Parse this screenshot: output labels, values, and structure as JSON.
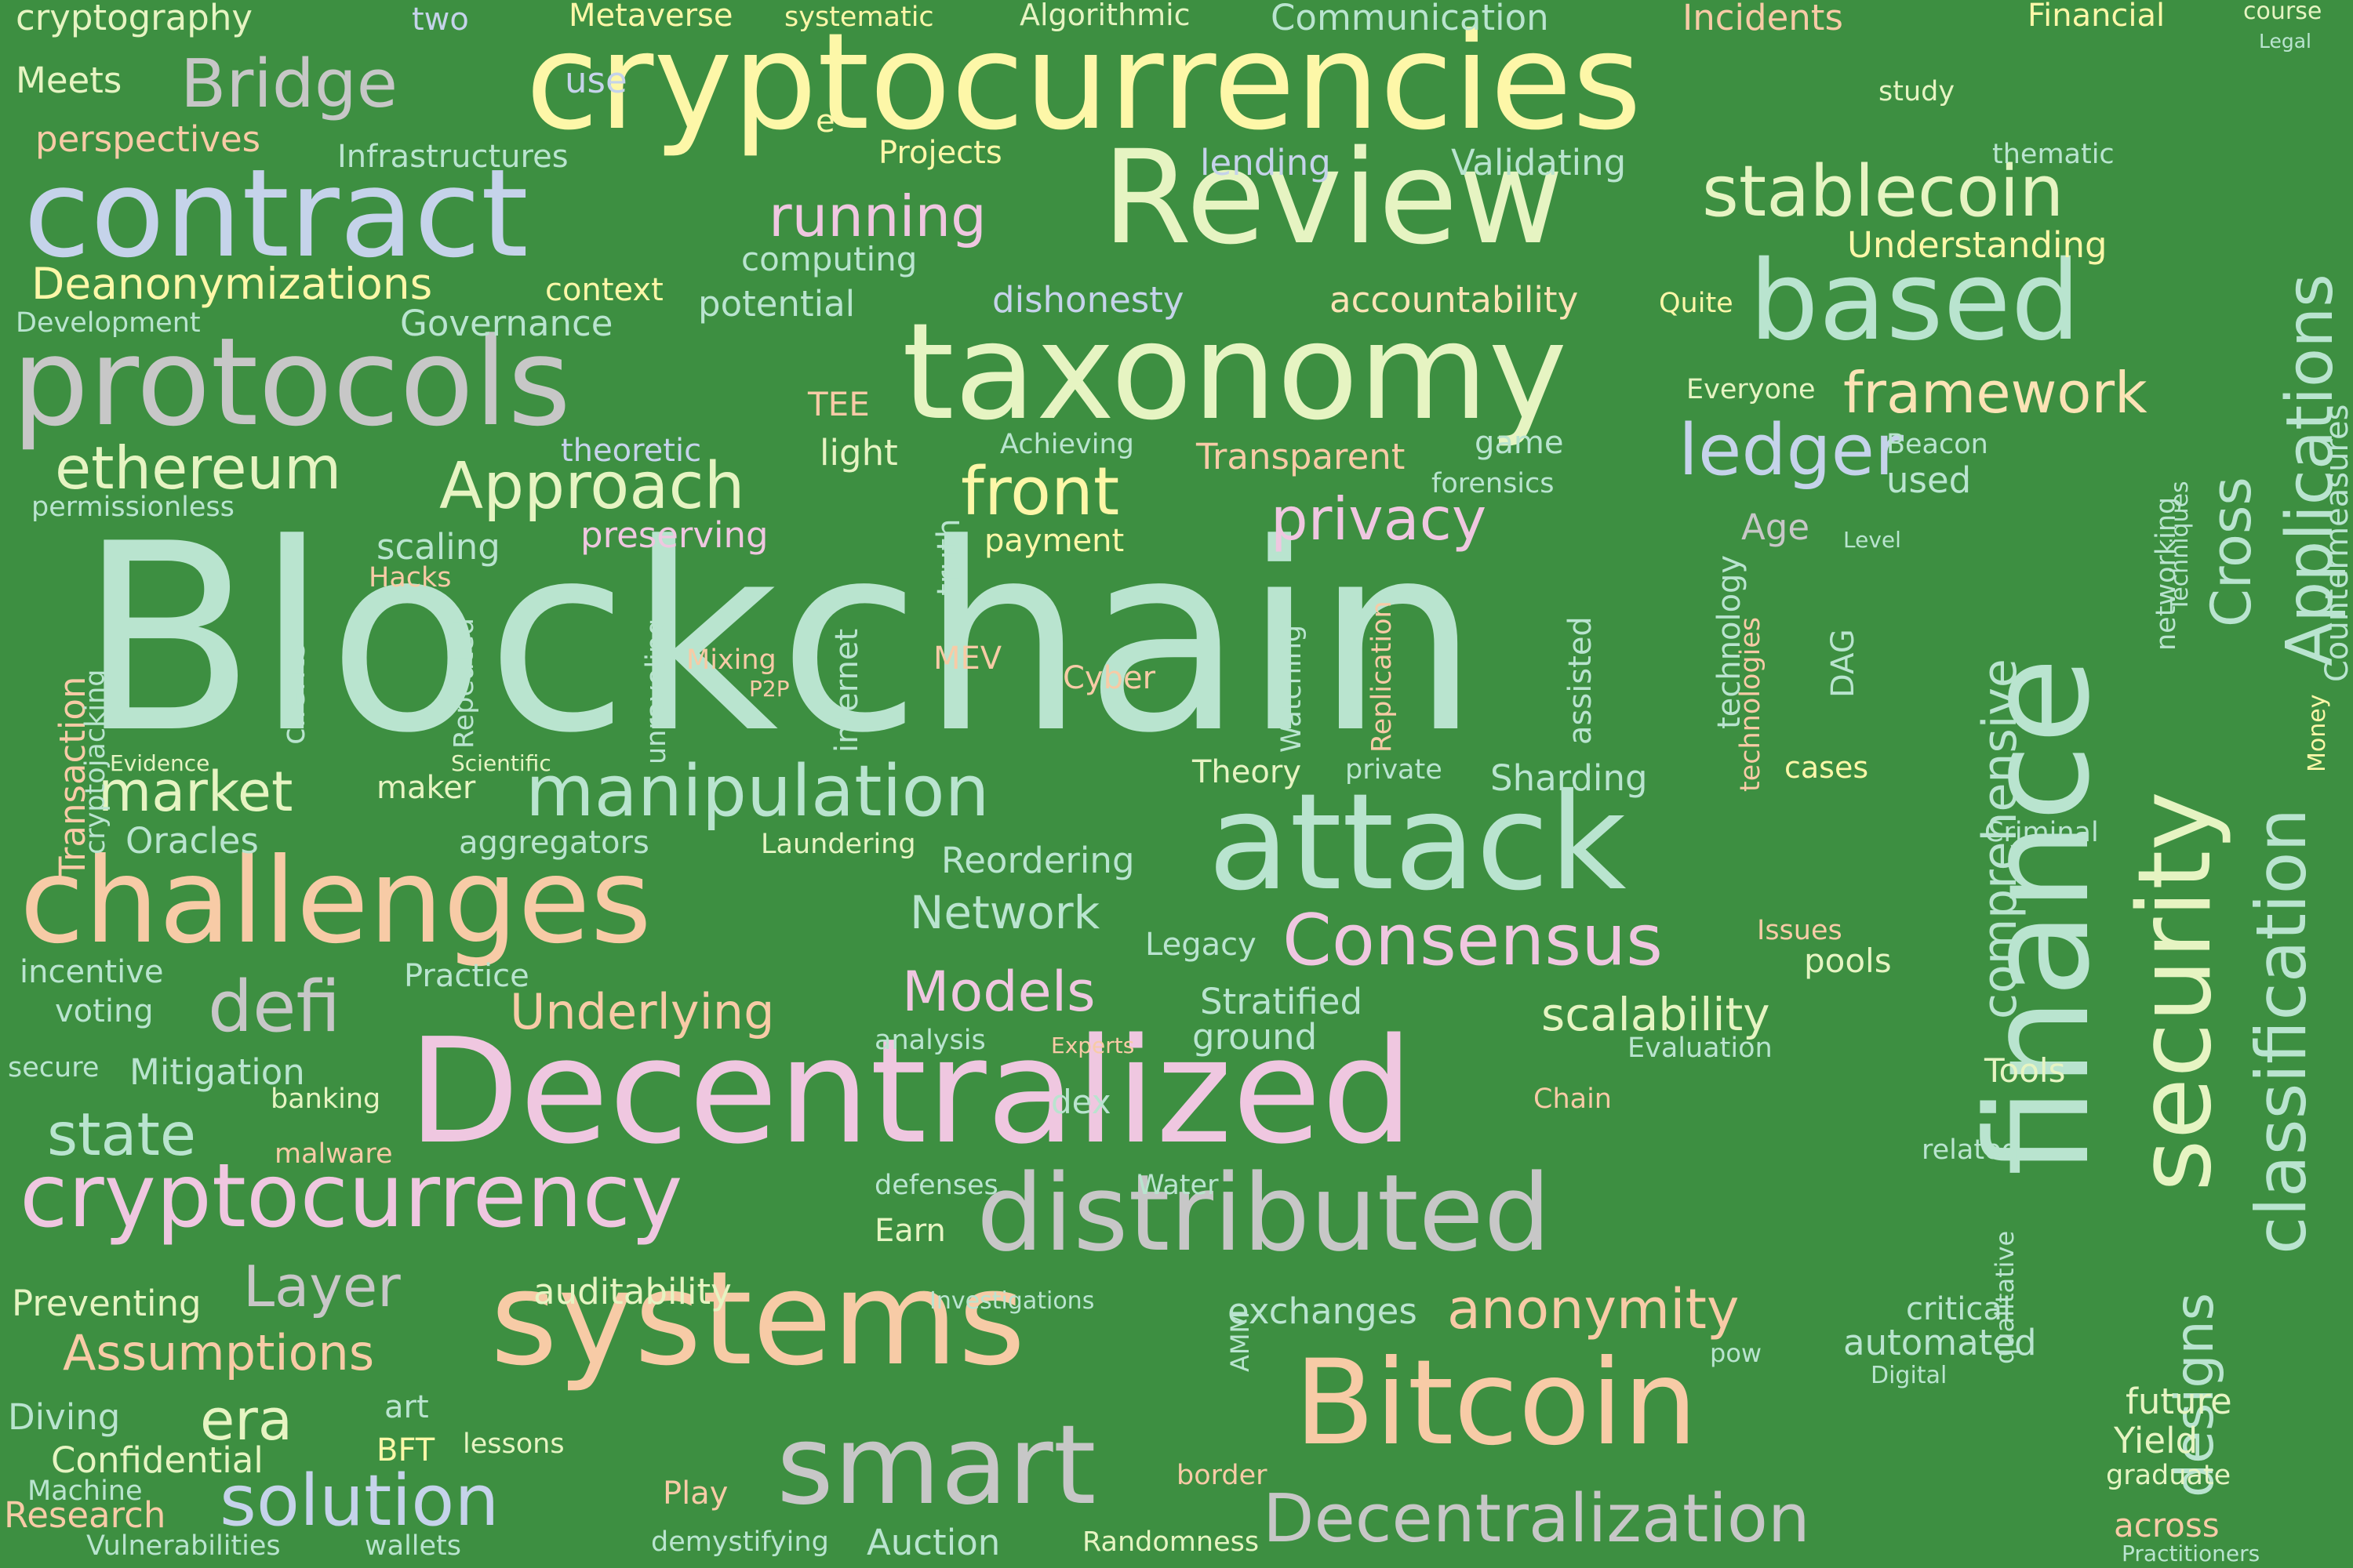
{
  "background": "#3d8f41",
  "palette": {
    "mint": "#b9e4cf",
    "peach": "#f7cba6",
    "pink": "#efc7e0",
    "yellow": "#fdf7a8",
    "lime": "#e6f4c2",
    "silver": "#c7c7c7",
    "blue": "#c5d3ea",
    "cream": "#fbe3b5"
  },
  "words": [
    {
      "text": "Blockchain",
      "color": "mint"
    },
    {
      "text": "cryptocurrencies",
      "color": "yellow"
    },
    {
      "text": "Decentralized",
      "color": "pink"
    },
    {
      "text": "taxonomy",
      "color": "lime"
    },
    {
      "text": "protocols",
      "color": "silver"
    },
    {
      "text": "attack",
      "color": "mint"
    },
    {
      "text": "Review",
      "color": "lime"
    },
    {
      "text": "systems",
      "color": "peach"
    },
    {
      "text": "challenges",
      "color": "peach"
    },
    {
      "text": "contract",
      "color": "blue"
    },
    {
      "text": "distributed",
      "color": "silver"
    },
    {
      "text": "finance",
      "color": "mint"
    },
    {
      "text": "Bitcoin",
      "color": "peach"
    },
    {
      "text": "smart",
      "color": "silver"
    },
    {
      "text": "based",
      "color": "mint"
    },
    {
      "text": "security",
      "color": "lime"
    },
    {
      "text": "cryptocurrency",
      "color": "pink"
    },
    {
      "text": "manipulation",
      "color": "mint"
    },
    {
      "text": "Decentralization",
      "color": "silver"
    },
    {
      "text": "classification",
      "color": "mint"
    },
    {
      "text": "Applications",
      "color": "mint"
    },
    {
      "text": "stablecoin",
      "color": "lime"
    },
    {
      "text": "solution",
      "color": "blue"
    },
    {
      "text": "Consensus",
      "color": "pink"
    },
    {
      "text": "ledger",
      "color": "blue"
    },
    {
      "text": "Approach",
      "color": "lime"
    },
    {
      "text": "front",
      "color": "yellow"
    },
    {
      "text": "Bridge",
      "color": "silver"
    },
    {
      "text": "defi",
      "color": "silver"
    },
    {
      "text": "privacy",
      "color": "pink"
    },
    {
      "text": "framework",
      "color": "cream"
    },
    {
      "text": "ethereum",
      "color": "lime"
    },
    {
      "text": "market",
      "color": "lime"
    },
    {
      "text": "running",
      "color": "pink"
    },
    {
      "text": "anonymity",
      "color": "peach"
    },
    {
      "text": "Models",
      "color": "pink"
    },
    {
      "text": "state",
      "color": "mint"
    },
    {
      "text": "Layer",
      "color": "silver"
    },
    {
      "text": "era",
      "color": "lime"
    },
    {
      "text": "comprehensive",
      "color": "mint"
    },
    {
      "text": "designs",
      "color": "mint"
    },
    {
      "text": "Cross",
      "color": "mint"
    },
    {
      "text": "Underlying",
      "color": "peach"
    },
    {
      "text": "Deanonymizations",
      "color": "yellow"
    },
    {
      "text": "scalability",
      "color": "lime"
    },
    {
      "text": "Assumptions",
      "color": "peach"
    },
    {
      "text": "Network",
      "color": "mint"
    },
    {
      "text": "Oracles",
      "color": "mint"
    },
    {
      "text": "Incidents",
      "color": "peach"
    },
    {
      "text": "Financial",
      "color": "yellow"
    },
    {
      "text": "Communication",
      "color": "mint"
    },
    {
      "text": "Metaverse",
      "color": "yellow"
    },
    {
      "text": "Algorithmic",
      "color": "lime"
    },
    {
      "text": "systematic",
      "color": "yellow"
    },
    {
      "text": "cryptography",
      "color": "lime"
    },
    {
      "text": "two",
      "color": "blue"
    },
    {
      "text": "course",
      "color": "lime"
    },
    {
      "text": "Legal",
      "color": "mint"
    },
    {
      "text": "Meets",
      "color": "lime"
    },
    {
      "text": "use",
      "color": "blue"
    },
    {
      "text": "e",
      "color": "yellow"
    },
    {
      "text": "study",
      "color": "lime"
    },
    {
      "text": "perspectives",
      "color": "peach"
    },
    {
      "text": "Infrastructures",
      "color": "mint"
    },
    {
      "text": "Projects",
      "color": "yellow"
    },
    {
      "text": "lending",
      "color": "blue"
    },
    {
      "text": "Validating",
      "color": "mint"
    },
    {
      "text": "thematic",
      "color": "mint"
    },
    {
      "text": "computing",
      "color": "mint"
    },
    {
      "text": "Understanding",
      "color": "yellow"
    },
    {
      "text": "context",
      "color": "yellow"
    },
    {
      "text": "potential",
      "color": "mint"
    },
    {
      "text": "dishonesty",
      "color": "blue"
    },
    {
      "text": "accountability",
      "color": "cream"
    },
    {
      "text": "Quite",
      "color": "yellow"
    },
    {
      "text": "Development",
      "color": "mint"
    },
    {
      "text": "Governance",
      "color": "mint"
    },
    {
      "text": "Countermeasures",
      "color": "mint"
    },
    {
      "text": "TEE",
      "color": "peach"
    },
    {
      "text": "Everyone",
      "color": "lime"
    },
    {
      "text": "theoretic",
      "color": "blue"
    },
    {
      "text": "light",
      "color": "lime"
    },
    {
      "text": "Achieving",
      "color": "mint"
    },
    {
      "text": "Transparent",
      "color": "peach"
    },
    {
      "text": "game",
      "color": "mint"
    },
    {
      "text": "Beacon",
      "color": "mint"
    },
    {
      "text": "Techniques",
      "color": "mint"
    },
    {
      "text": "forensics",
      "color": "mint"
    },
    {
      "text": "used",
      "color": "mint"
    },
    {
      "text": "permissionless",
      "color": "mint"
    },
    {
      "text": "scaling",
      "color": "mint"
    },
    {
      "text": "preserving",
      "color": "pink"
    },
    {
      "text": "truth",
      "color": "mint"
    },
    {
      "text": "payment",
      "color": "yellow"
    },
    {
      "text": "Age",
      "color": "silver"
    },
    {
      "text": "Level",
      "color": "mint"
    },
    {
      "text": "networking",
      "color": "mint"
    },
    {
      "text": "Hacks",
      "color": "peach"
    },
    {
      "text": "Transaction",
      "color": "peach"
    },
    {
      "text": "cryptojacking",
      "color": "mint"
    },
    {
      "text": "clients",
      "color": "mint"
    },
    {
      "text": "Repeated",
      "color": "mint"
    },
    {
      "text": "unraveling",
      "color": "mint"
    },
    {
      "text": "internet",
      "color": "mint"
    },
    {
      "text": "Mixing",
      "color": "peach"
    },
    {
      "text": "P2P",
      "color": "peach"
    },
    {
      "text": "MEV",
      "color": "peach"
    },
    {
      "text": "Cyber",
      "color": "peach"
    },
    {
      "text": "Watching",
      "color": "mint"
    },
    {
      "text": "Replication",
      "color": "peach"
    },
    {
      "text": "assisted",
      "color": "mint"
    },
    {
      "text": "technology",
      "color": "mint"
    },
    {
      "text": "technologies",
      "color": "peach"
    },
    {
      "text": "DAG",
      "color": "mint"
    },
    {
      "text": "Evidence",
      "color": "lime"
    },
    {
      "text": "Scientific",
      "color": "lime"
    },
    {
      "text": "maker",
      "color": "lime"
    },
    {
      "text": "Theory",
      "color": "lime"
    },
    {
      "text": "private",
      "color": "mint"
    },
    {
      "text": "Sharding",
      "color": "mint"
    },
    {
      "text": "cases",
      "color": "yellow"
    },
    {
      "text": "Money",
      "color": "yellow"
    },
    {
      "text": "aggregators",
      "color": "mint"
    },
    {
      "text": "Laundering",
      "color": "lime"
    },
    {
      "text": "Reordering",
      "color": "mint"
    },
    {
      "text": "Criminal",
      "color": "mint"
    },
    {
      "text": "Legacy",
      "color": "mint"
    },
    {
      "text": "Issues",
      "color": "peach"
    },
    {
      "text": "pools",
      "color": "lime"
    },
    {
      "text": "incentive",
      "color": "mint"
    },
    {
      "text": "Practice",
      "color": "mint"
    },
    {
      "text": "Stratified",
      "color": "mint"
    },
    {
      "text": "voting",
      "color": "mint"
    },
    {
      "text": "analysis",
      "color": "mint"
    },
    {
      "text": "Experts",
      "color": "peach"
    },
    {
      "text": "ground",
      "color": "mint"
    },
    {
      "text": "Evaluation",
      "color": "mint"
    },
    {
      "text": "secure",
      "color": "mint"
    },
    {
      "text": "Mitigation",
      "color": "mint"
    },
    {
      "text": "Tools",
      "color": "lime"
    },
    {
      "text": "banking",
      "color": "lime"
    },
    {
      "text": "dex",
      "color": "mint"
    },
    {
      "text": "Chain",
      "color": "peach"
    },
    {
      "text": "malware",
      "color": "peach"
    },
    {
      "text": "related",
      "color": "mint"
    },
    {
      "text": "defenses",
      "color": "mint"
    },
    {
      "text": "Water",
      "color": "mint"
    },
    {
      "text": "Earn",
      "color": "lime"
    },
    {
      "text": "Preventing",
      "color": "lime"
    },
    {
      "text": "auditability",
      "color": "lime"
    },
    {
      "text": "Investigations",
      "color": "mint"
    },
    {
      "text": "exchanges",
      "color": "mint"
    },
    {
      "text": "critical",
      "color": "mint"
    },
    {
      "text": "automated",
      "color": "mint"
    },
    {
      "text": "pow",
      "color": "mint"
    },
    {
      "text": "Digital",
      "color": "mint"
    },
    {
      "text": "qualitative",
      "color": "mint"
    },
    {
      "text": "AMM",
      "color": "mint"
    },
    {
      "text": "future",
      "color": "lime"
    },
    {
      "text": "Diving",
      "color": "mint"
    },
    {
      "text": "art",
      "color": "mint"
    },
    {
      "text": "Confidential",
      "color": "lime"
    },
    {
      "text": "BFT",
      "color": "yellow"
    },
    {
      "text": "lessons",
      "color": "lime"
    },
    {
      "text": "Yield",
      "color": "lime"
    },
    {
      "text": "Machine",
      "color": "mint"
    },
    {
      "text": "Play",
      "color": "peach"
    },
    {
      "text": "border",
      "color": "peach"
    },
    {
      "text": "graduate",
      "color": "lime"
    },
    {
      "text": "Research",
      "color": "peach"
    },
    {
      "text": "Vulnerabilities",
      "color": "mint"
    },
    {
      "text": "wallets",
      "color": "mint"
    },
    {
      "text": "demystifying",
      "color": "mint"
    },
    {
      "text": "Auction",
      "color": "mint"
    },
    {
      "text": "Randomness",
      "color": "lime"
    },
    {
      "text": "across",
      "color": "peach"
    },
    {
      "text": "Practitioners",
      "color": "mint"
    }
  ]
}
